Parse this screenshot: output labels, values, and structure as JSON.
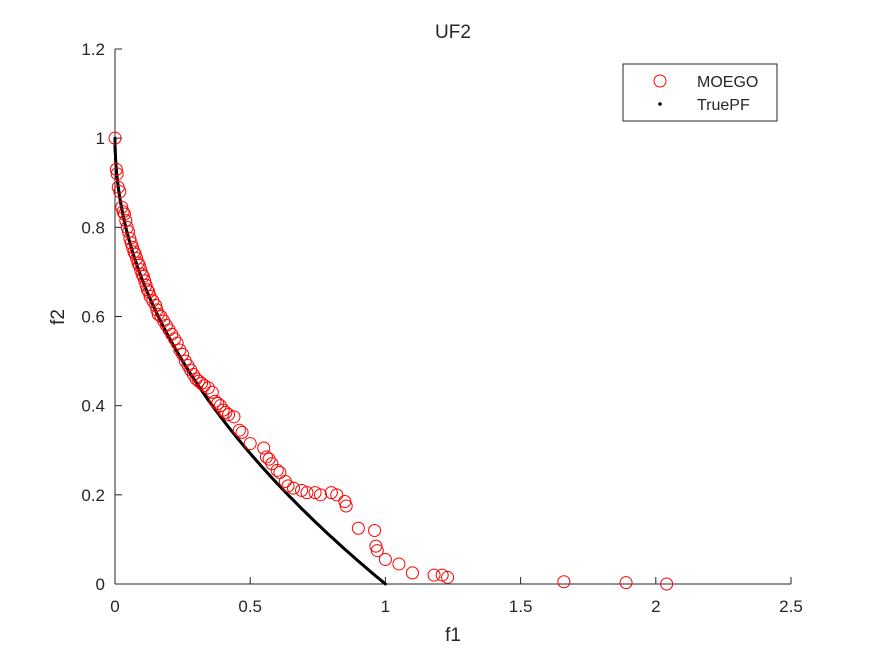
{
  "chart_data": {
    "type": "scatter",
    "title": "UF2",
    "xlabel": "f1",
    "ylabel": "f2",
    "xlim": [
      0,
      2.5
    ],
    "ylim": [
      0,
      1.2
    ],
    "xticks": [
      0,
      0.5,
      1,
      1.5,
      2,
      2.5
    ],
    "yticks": [
      0,
      0.2,
      0.4,
      0.6,
      0.8,
      1,
      1.2
    ],
    "xtick_labels": [
      "0",
      "0.5",
      "1",
      "1.5",
      "2",
      "2.5"
    ],
    "ytick_labels": [
      "0",
      "0.2",
      "0.4",
      "0.6",
      "0.8",
      "1",
      "1.2"
    ],
    "grid": false,
    "legend_position": "top-right",
    "series": [
      {
        "name": "MOEGO",
        "marker": "open-circle",
        "color": "#ff0000",
        "points": [
          [
            0.0,
            1.0
          ],
          [
            0.005,
            0.93
          ],
          [
            0.008,
            0.92
          ],
          [
            0.012,
            0.89
          ],
          [
            0.018,
            0.88
          ],
          [
            0.025,
            0.845
          ],
          [
            0.03,
            0.835
          ],
          [
            0.035,
            0.83
          ],
          [
            0.04,
            0.815
          ],
          [
            0.045,
            0.8
          ],
          [
            0.05,
            0.79
          ],
          [
            0.055,
            0.775
          ],
          [
            0.06,
            0.765
          ],
          [
            0.065,
            0.755
          ],
          [
            0.07,
            0.745
          ],
          [
            0.075,
            0.74
          ],
          [
            0.08,
            0.73
          ],
          [
            0.085,
            0.72
          ],
          [
            0.09,
            0.715
          ],
          [
            0.095,
            0.705
          ],
          [
            0.1,
            0.695
          ],
          [
            0.105,
            0.69
          ],
          [
            0.11,
            0.68
          ],
          [
            0.115,
            0.67
          ],
          [
            0.12,
            0.66
          ],
          [
            0.125,
            0.655
          ],
          [
            0.13,
            0.645
          ],
          [
            0.14,
            0.635
          ],
          [
            0.15,
            0.625
          ],
          [
            0.155,
            0.615
          ],
          [
            0.16,
            0.605
          ],
          [
            0.17,
            0.6
          ],
          [
            0.18,
            0.59
          ],
          [
            0.19,
            0.58
          ],
          [
            0.2,
            0.57
          ],
          [
            0.21,
            0.56
          ],
          [
            0.22,
            0.55
          ],
          [
            0.23,
            0.54
          ],
          [
            0.24,
            0.525
          ],
          [
            0.25,
            0.515
          ],
          [
            0.26,
            0.5
          ],
          [
            0.27,
            0.49
          ],
          [
            0.28,
            0.48
          ],
          [
            0.29,
            0.47
          ],
          [
            0.3,
            0.46
          ],
          [
            0.31,
            0.455
          ],
          [
            0.32,
            0.45
          ],
          [
            0.33,
            0.445
          ],
          [
            0.345,
            0.44
          ],
          [
            0.36,
            0.43
          ],
          [
            0.37,
            0.41
          ],
          [
            0.38,
            0.405
          ],
          [
            0.39,
            0.4
          ],
          [
            0.4,
            0.39
          ],
          [
            0.41,
            0.385
          ],
          [
            0.42,
            0.38
          ],
          [
            0.44,
            0.375
          ],
          [
            0.46,
            0.345
          ],
          [
            0.47,
            0.34
          ],
          [
            0.5,
            0.315
          ],
          [
            0.55,
            0.305
          ],
          [
            0.56,
            0.285
          ],
          [
            0.57,
            0.28
          ],
          [
            0.58,
            0.27
          ],
          [
            0.6,
            0.255
          ],
          [
            0.61,
            0.25
          ],
          [
            0.63,
            0.23
          ],
          [
            0.64,
            0.22
          ],
          [
            0.66,
            0.215
          ],
          [
            0.69,
            0.21
          ],
          [
            0.71,
            0.205
          ],
          [
            0.74,
            0.205
          ],
          [
            0.76,
            0.2
          ],
          [
            0.8,
            0.205
          ],
          [
            0.82,
            0.2
          ],
          [
            0.85,
            0.185
          ],
          [
            0.855,
            0.175
          ],
          [
            0.9,
            0.125
          ],
          [
            0.96,
            0.12
          ],
          [
            0.965,
            0.085
          ],
          [
            0.97,
            0.075
          ],
          [
            1.0,
            0.055
          ],
          [
            1.05,
            0.045
          ],
          [
            1.1,
            0.025
          ],
          [
            1.18,
            0.02
          ],
          [
            1.21,
            0.02
          ],
          [
            1.23,
            0.015
          ],
          [
            1.66,
            0.005
          ],
          [
            1.89,
            0.003
          ],
          [
            2.04,
            0.0
          ]
        ]
      },
      {
        "name": "TruePF",
        "marker": "dot",
        "color": "#000000",
        "function": "f2 = 1 - sqrt(f1), f1 in [0, 1]"
      }
    ]
  }
}
